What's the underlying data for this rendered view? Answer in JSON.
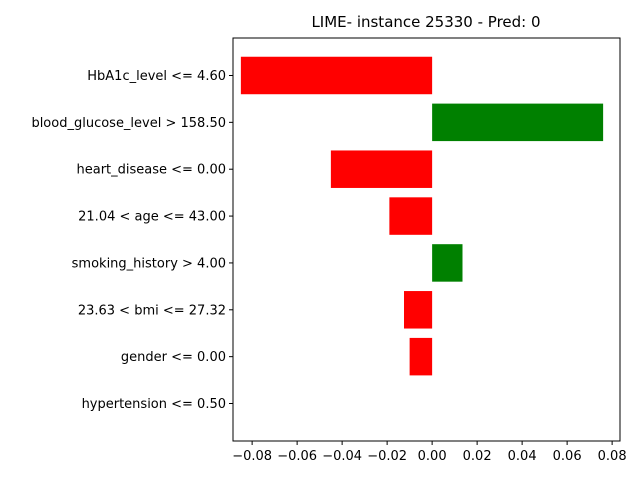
{
  "chart_data": {
    "type": "bar",
    "orientation": "horizontal",
    "title": "LIME- instance 25330 - Pred: 0",
    "xlabel": "",
    "ylabel": "",
    "xlim": [
      -0.0885,
      0.0835
    ],
    "xticks": [
      -0.08,
      -0.06,
      -0.04,
      -0.02,
      0.0,
      0.02,
      0.04,
      0.06,
      0.08
    ],
    "xtick_labels": [
      "−0.08",
      "−0.06",
      "−0.04",
      "−0.02",
      "0.00",
      "0.02",
      "0.04",
      "0.06",
      "0.08"
    ],
    "categories": [
      "HbA1c_level <= 4.60",
      "blood_glucose_level > 158.50",
      "heart_disease <= 0.00",
      "21.04 < age <= 43.00",
      "smoking_history > 4.00",
      "23.63 < bmi <= 27.32",
      "gender <= 0.00",
      "hypertension <= 0.50"
    ],
    "values": [
      -0.085,
      0.076,
      -0.045,
      -0.019,
      0.0135,
      -0.0125,
      -0.01,
      0.0
    ],
    "colors": {
      "negative": "#ff0000",
      "positive": "#008000"
    },
    "grid": false
  }
}
